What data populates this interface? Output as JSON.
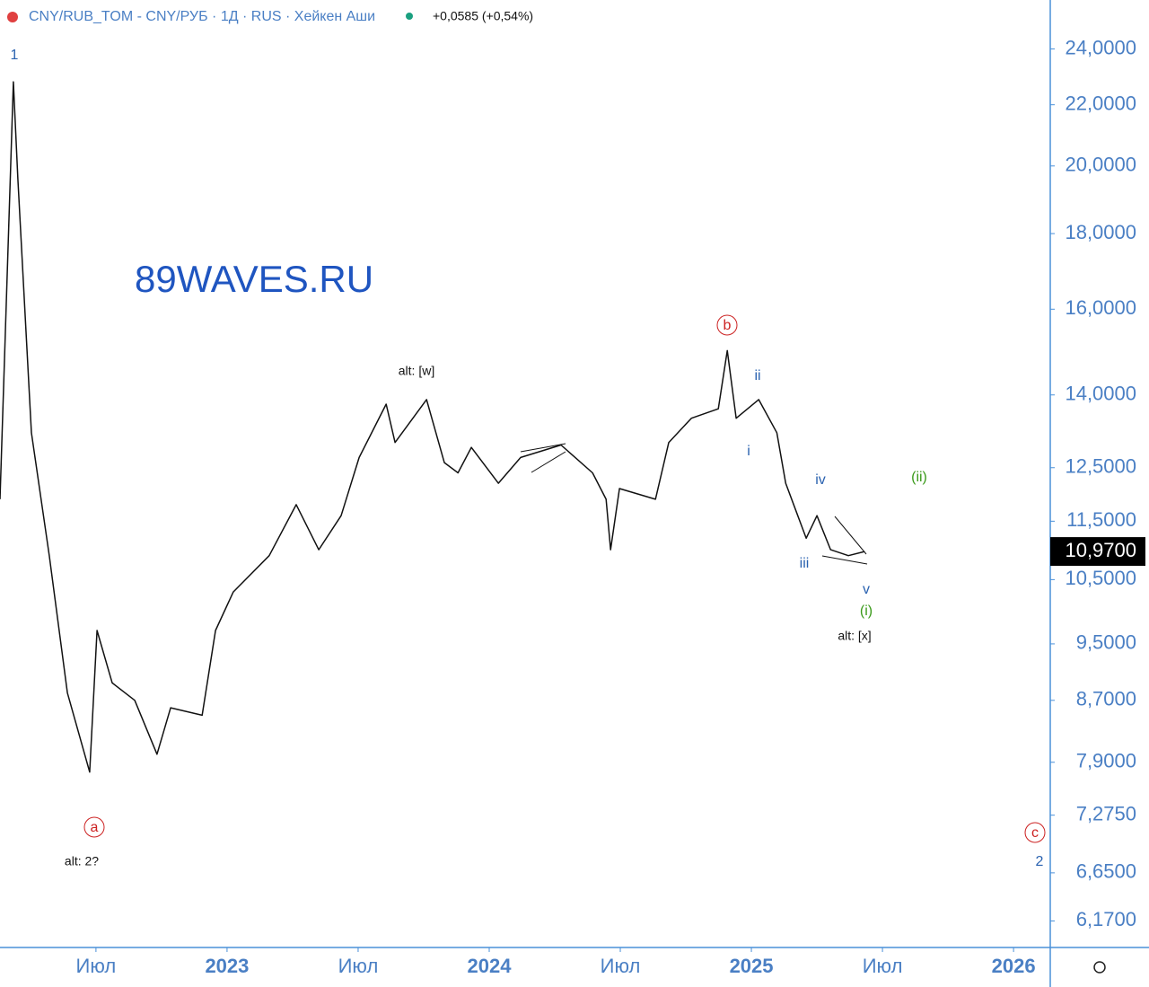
{
  "chart_data": {
    "type": "line",
    "title": "CNY/RUB_TOM - CNY/РУБ · 1Д · RUS · Хейкен Аши",
    "subtitle": "+0,0585 (+0,54%)",
    "watermark": "89WAVES.RU",
    "color": "#111111",
    "log_scale": true,
    "x": [
      2022.134,
      2022.185,
      2022.202,
      2022.254,
      2022.322,
      2022.391,
      2022.476,
      2022.504,
      2022.562,
      2022.648,
      2022.733,
      2022.785,
      2022.905,
      2022.956,
      2023.024,
      2023.161,
      2023.264,
      2023.35,
      2023.435,
      2023.504,
      2023.607,
      2023.641,
      2023.761,
      2023.829,
      2023.881,
      2023.932,
      2024.035,
      2024.12,
      2024.274,
      2024.394,
      2024.446,
      2024.463,
      2024.497,
      2024.634,
      2024.685,
      2024.771,
      2024.874,
      2024.908,
      2024.942,
      2025.028,
      2025.097,
      2025.131,
      2025.209,
      2025.25,
      2025.302,
      2025.37,
      2025.432
    ],
    "values": [
      11.9,
      22.8,
      19.6,
      13.2,
      10.9,
      8.8,
      7.78,
      9.7,
      8.94,
      8.7,
      8.0,
      8.6,
      8.5,
      9.7,
      10.3,
      10.9,
      11.8,
      11.0,
      11.6,
      12.7,
      13.8,
      13.0,
      13.9,
      12.6,
      12.4,
      12.9,
      12.2,
      12.7,
      12.95,
      12.4,
      11.9,
      11.0,
      12.1,
      11.9,
      13.0,
      13.5,
      13.7,
      15.0,
      13.5,
      13.9,
      13.2,
      12.2,
      11.2,
      11.6,
      11.0,
      10.9,
      10.97
    ],
    "last_price": {
      "value": 10.97,
      "label": "10,9700"
    },
    "xlim": [
      2022.134,
      2026.14
    ],
    "xticks": [
      {
        "value": 2022.5,
        "label": "Июл"
      },
      2023,
      {
        "value": 2023.5,
        "label": "Июл"
      },
      2024,
      {
        "value": 2024.5,
        "label": "Июл"
      },
      2025,
      {
        "value": 2025.5,
        "label": "Июл"
      },
      2026
    ],
    "ylim": [
      5.92,
      25.9
    ],
    "yticks": [
      {
        "value": 24,
        "label": "24,0000"
      },
      {
        "value": 22,
        "label": "22,0000"
      },
      {
        "value": 20,
        "label": "20,0000"
      },
      {
        "value": 18,
        "label": "18,0000"
      },
      {
        "value": 16,
        "label": "16,0000"
      },
      {
        "value": 14,
        "label": "14,0000"
      },
      {
        "value": 12.5,
        "label": "12,5000"
      },
      {
        "value": 11.5,
        "label": "11,5000"
      },
      {
        "value": 10.5,
        "label": "10,5000"
      },
      {
        "value": 9.5,
        "label": "9,5000"
      },
      {
        "value": 8.7,
        "label": "8,7000"
      },
      {
        "value": 7.9,
        "label": "7,9000"
      },
      {
        "value": 7.275,
        "label": "7,2750"
      },
      {
        "value": 6.65,
        "label": "6,6500"
      },
      {
        "value": 6.17,
        "label": "6,1700"
      }
    ],
    "annotations": [
      "1",
      "alt: [w]",
      "b",
      "ii",
      "i",
      "iv",
      "(ii)",
      "iii",
      "v",
      "(i)",
      "alt: [x]",
      "a",
      "alt: 2?",
      "c",
      "2"
    ]
  }
}
